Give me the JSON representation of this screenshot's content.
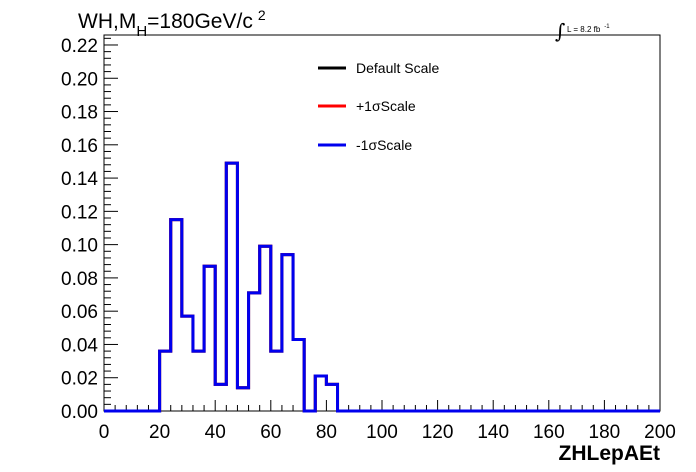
{
  "chart_data": {
    "type": "step",
    "title_main": "WH,M",
    "title_sub": "H",
    "title_rest": "=180GeV/c",
    "title_sup": "2",
    "lumi_label": "L = 8.2 fb",
    "lumi_sup": "-1",
    "xlabel": "ZHLepAEt",
    "ylabel": "",
    "xlim": [
      0,
      200
    ],
    "ylim": [
      0,
      0.226
    ],
    "x_ticks": [
      "0",
      "20",
      "40",
      "60",
      "80",
      "100",
      "120",
      "140",
      "160",
      "180",
      "200"
    ],
    "y_ticks": [
      "0.00",
      "0.02",
      "0.04",
      "0.06",
      "0.08",
      "0.10",
      "0.12",
      "0.14",
      "0.16",
      "0.18",
      "0.20",
      "0.22"
    ],
    "bin_width": 4,
    "bin_edges_start": 0,
    "series": [
      {
        "name": "Default Scale",
        "color": "#000000",
        "values": [
          0,
          0,
          0,
          0,
          0,
          0.036,
          0.115,
          0.057,
          0.036,
          0.087,
          0.016,
          0.149,
          0.014,
          0.071,
          0.099,
          0.036,
          0.094,
          0.043,
          0,
          0.021,
          0.016,
          0,
          0,
          0,
          0,
          0,
          0,
          0,
          0,
          0,
          0,
          0,
          0,
          0,
          0,
          0,
          0,
          0,
          0,
          0,
          0,
          0,
          0,
          0,
          0,
          0,
          0,
          0,
          0,
          0
        ]
      },
      {
        "name": "+1σScale",
        "color": "#ff0000",
        "values": [
          0,
          0,
          0,
          0,
          0,
          0.036,
          0.115,
          0.057,
          0.036,
          0.087,
          0.016,
          0.149,
          0.014,
          0.071,
          0.099,
          0.036,
          0.094,
          0.043,
          0,
          0.021,
          0.016,
          0,
          0,
          0,
          0,
          0,
          0,
          0,
          0,
          0,
          0,
          0,
          0,
          0,
          0,
          0,
          0,
          0,
          0,
          0,
          0,
          0,
          0,
          0,
          0,
          0,
          0,
          0,
          0,
          0
        ]
      },
      {
        "name": "-1σScale",
        "color": "#0000ee",
        "values": [
          0,
          0,
          0,
          0,
          0,
          0.036,
          0.115,
          0.057,
          0.036,
          0.087,
          0.016,
          0.149,
          0.014,
          0.071,
          0.099,
          0.036,
          0.094,
          0.043,
          0,
          0.021,
          0.016,
          0,
          0,
          0,
          0,
          0,
          0,
          0,
          0,
          0,
          0,
          0,
          0,
          0,
          0,
          0,
          0,
          0,
          0,
          0,
          0,
          0,
          0,
          0,
          0,
          0,
          0,
          0,
          0,
          0
        ]
      }
    ]
  }
}
